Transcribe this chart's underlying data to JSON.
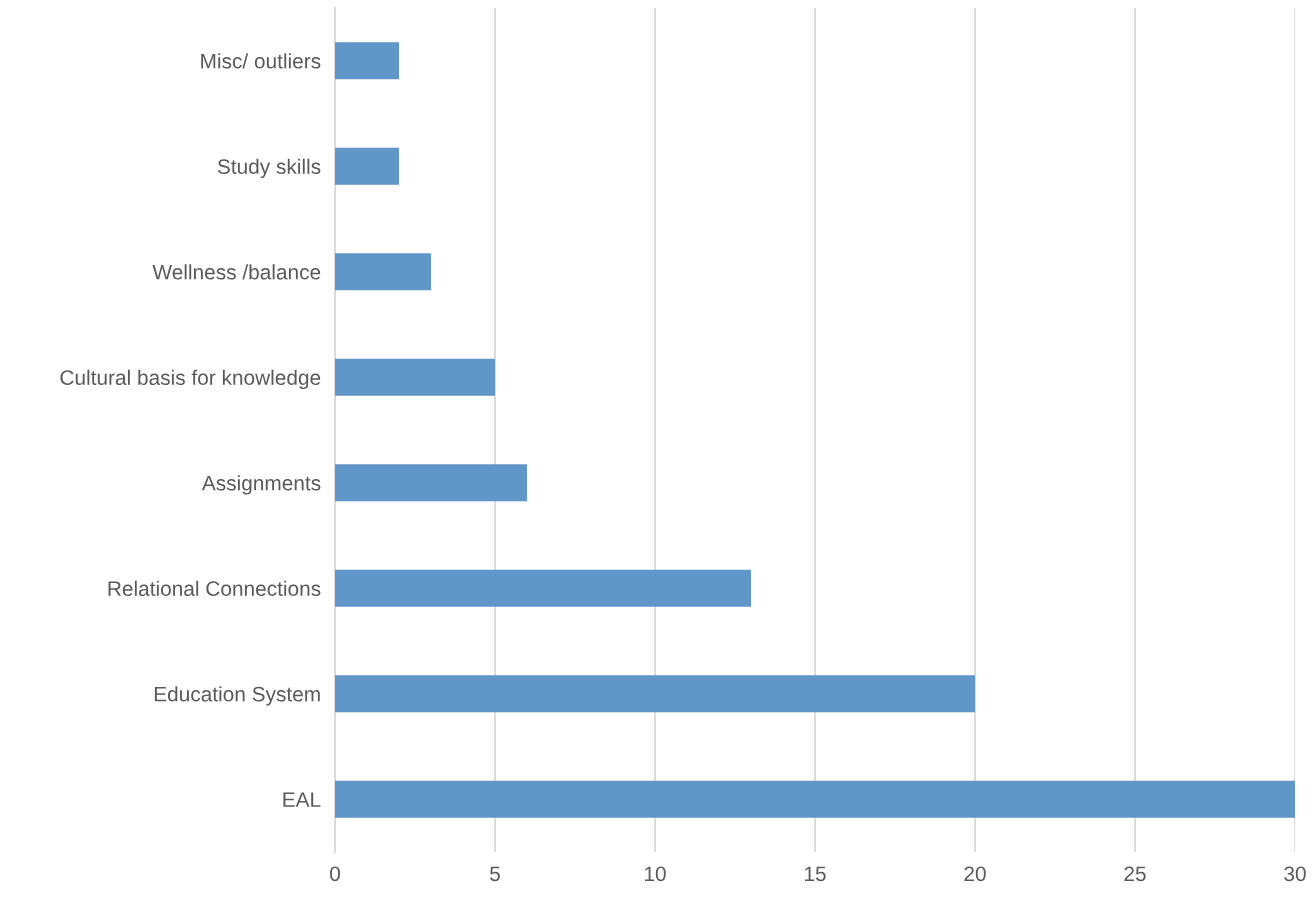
{
  "chart_data": {
    "type": "bar",
    "orientation": "horizontal",
    "categories": [
      "Misc/ outliers",
      "Study skills",
      "Wellness /balance",
      "Cultural basis for knowledge",
      "Assignments",
      "Relational Connections",
      "Education System",
      "EAL"
    ],
    "values": [
      2,
      2,
      3,
      5,
      6,
      13,
      20,
      30
    ],
    "color": "#6096c8",
    "xlim": [
      0,
      30
    ],
    "xticks": [
      0,
      5,
      10,
      15,
      20,
      25,
      30
    ],
    "grid": "x",
    "legend": false
  }
}
